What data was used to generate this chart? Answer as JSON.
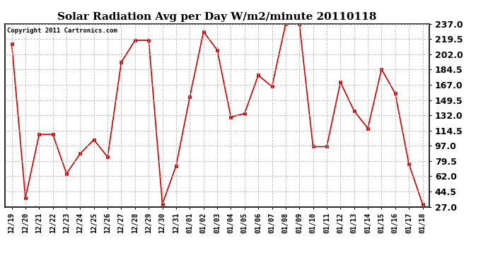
{
  "title": "Solar Radiation Avg per Day W/m2/minute 20110118",
  "copyright": "Copyright 2011 Cartronics.com",
  "labels": [
    "12/19",
    "12/20",
    "12/21",
    "12/22",
    "12/23",
    "12/24",
    "12/25",
    "12/26",
    "12/27",
    "12/28",
    "12/29",
    "12/30",
    "12/31",
    "01/01",
    "01/02",
    "01/03",
    "01/04",
    "01/05",
    "01/06",
    "01/07",
    "01/08",
    "01/09",
    "01/10",
    "01/11",
    "01/12",
    "01/13",
    "01/14",
    "01/15",
    "01/16",
    "01/17",
    "01/18"
  ],
  "values": [
    214,
    37,
    110,
    110,
    65,
    88,
    104,
    84,
    193,
    218,
    218,
    30,
    74,
    153,
    228,
    207,
    130,
    134,
    178,
    165,
    237,
    237,
    96,
    96,
    170,
    137,
    117,
    185,
    157,
    76,
    30
  ],
  "line_color": "#cc0000",
  "marker_color": "#cc0000",
  "bg_color": "#ffffff",
  "plot_bg_color": "#ffffff",
  "grid_color": "#bbbbbb",
  "title_fontsize": 11,
  "copyright_fontsize": 6.5,
  "tick_fontsize": 7,
  "ytick_fontsize": 9,
  "ylim_min": 27.0,
  "ylim_max": 237.0,
  "yticks": [
    27.0,
    44.5,
    62.0,
    79.5,
    97.0,
    114.5,
    132.0,
    149.5,
    167.0,
    184.5,
    202.0,
    219.5,
    237.0
  ]
}
